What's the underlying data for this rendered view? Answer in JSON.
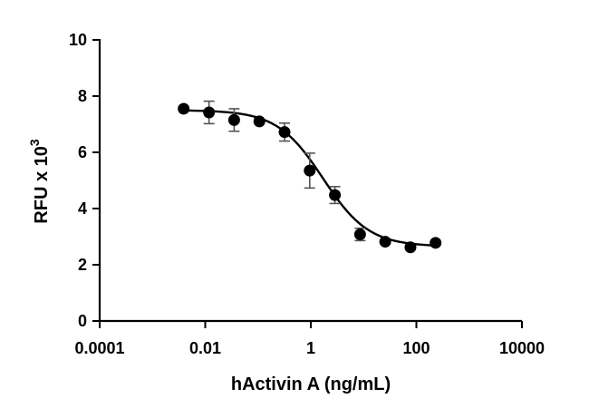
{
  "chart_data": {
    "type": "scatter",
    "title": "",
    "xlabel": "hActivin A (ng/mL)",
    "ylabel": "RFU x 10",
    "ylabel_superscript": "3",
    "xscale": "log",
    "xlim": [
      0.0001,
      10000
    ],
    "ylim": [
      0,
      10
    ],
    "xticks": [
      0.0001,
      0.01,
      1,
      100,
      10000
    ],
    "xtick_labels": [
      "0.0001",
      "0.01",
      "1",
      "100",
      "10000"
    ],
    "yticks": [
      0,
      2,
      4,
      6,
      8,
      10
    ],
    "ytick_labels": [
      "0",
      "2",
      "4",
      "6",
      "8",
      "10"
    ],
    "grid": false,
    "legend": "none",
    "series": [
      {
        "x": [
          0.0039,
          0.0118,
          0.0353,
          0.106,
          0.318,
          0.953,
          2.86,
          8.58,
          25.7,
          77.2,
          231
        ],
        "y": [
          7.55,
          7.42,
          7.15,
          7.1,
          6.72,
          5.35,
          4.48,
          3.08,
          2.82,
          2.62,
          2.78
        ],
        "error": [
          0.0,
          0.4,
          0.4,
          0.0,
          0.32,
          0.62,
          0.3,
          0.22,
          0.0,
          0.0,
          0.0
        ]
      }
    ],
    "fit": {
      "type": "4PL",
      "top": 7.5,
      "bottom": 2.65,
      "ec50": 1.7,
      "hill": 1.0
    }
  }
}
